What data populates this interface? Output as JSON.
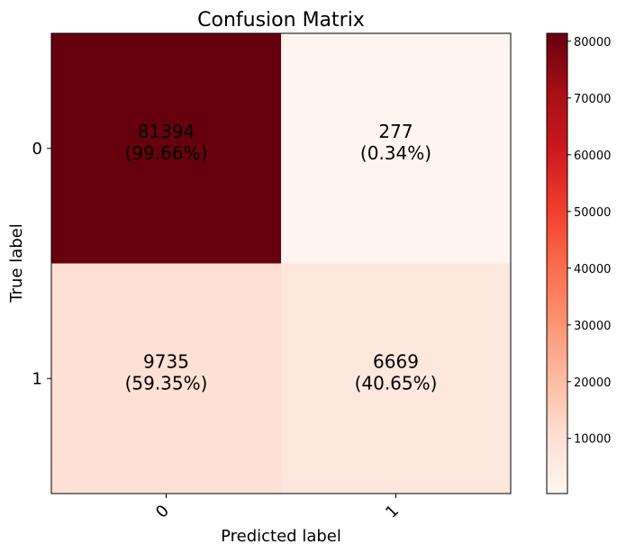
{
  "chart_data": {
    "type": "heatmap",
    "title": "Confusion Matrix",
    "xlabel": "Predicted label",
    "ylabel": "True label",
    "x_categories": [
      "0",
      "1"
    ],
    "y_categories": [
      "0",
      "1"
    ],
    "matrix": [
      [
        81394,
        277
      ],
      [
        9735,
        6669
      ]
    ],
    "cell_labels": [
      [
        "81394\n(99.66%)",
        "277\n(0.34%)"
      ],
      [
        "9735\n(59.35%)",
        "6669\n(40.65%)"
      ]
    ],
    "colormap": "Reds",
    "color_range": [
      277,
      81394
    ],
    "colorbar_ticks": [
      10000,
      20000,
      30000,
      40000,
      50000,
      60000,
      70000,
      80000
    ],
    "x_tick_rotation": 45
  }
}
